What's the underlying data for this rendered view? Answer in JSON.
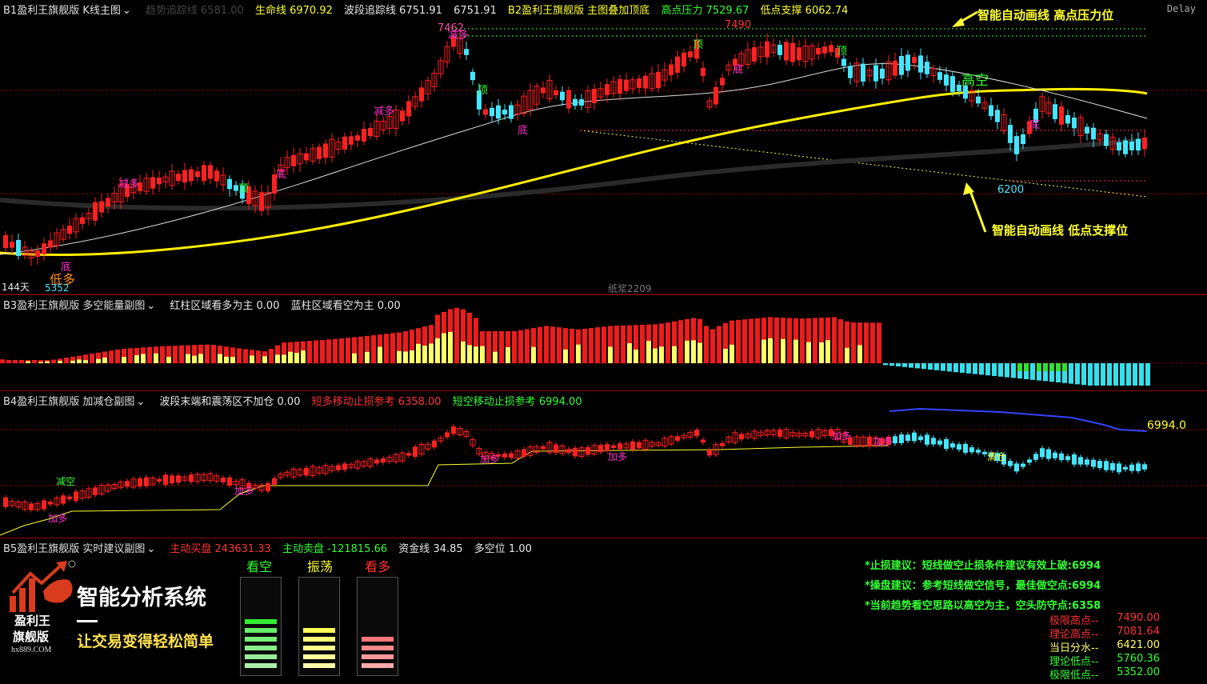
{
  "delay": "Delay",
  "main": {
    "title": "B1盈利王旗舰版 K线主图",
    "faded_label": "趋势追踪线 6581.00",
    "items": [
      {
        "label": "生命线",
        "value": "6970.92"
      },
      {
        "label": "波段追踪线",
        "value": "6751.91"
      },
      {
        "label": "",
        "value": "6751.91"
      }
    ],
    "subtitle": "B2盈利王旗舰版 主图叠加顶底",
    "pressure_label": "高点压力",
    "pressure_value": "7529.67",
    "support_label": "低点支撑",
    "support_value": "6062.74",
    "price_high": "7462",
    "price_low": "5352",
    "price_mark_top": "7490",
    "price_mark_low": "6200",
    "annotation_top": "智能自动画线  高点压力位",
    "annotation_bottom": "智能自动画线  低点支撑位",
    "gaokong": "高空",
    "dixiao": "低多",
    "days": "144天",
    "paper": "纸浆2209",
    "signals": {
      "ding": "顶",
      "di": "底",
      "jianduo": "减多"
    }
  },
  "sub3": {
    "title": "B3盈利王旗舰版 多空能量副图",
    "red_label": "红柱区域看多为主",
    "red_value": "0.00",
    "blue_label": "蓝柱区域看空为主",
    "blue_value": "0.00"
  },
  "sub4": {
    "title": "B4盈利王旗舰版 加减仓副图",
    "wave_label": "波段末端和震荡区不加仓",
    "wave_value": "0.00",
    "long_stop_label": "短多移动止损参考",
    "long_stop_value": "6358.00",
    "short_stop_label": "短空移动止损参考",
    "short_stop_value": "6994.00",
    "right_value": "6994.0",
    "jiaduo": "加多",
    "jiakong": "减空",
    "qingcang": "清仓"
  },
  "sub5": {
    "title": "B5盈利王旗舰版 实时建议副图",
    "buy_label": "主动买盘",
    "buy_value": "243631.33",
    "sell_label": "主动卖盘",
    "sell_value": "-121815.66",
    "fund_label": "资金线",
    "fund_value": "34.85",
    "pos_label": "多空位",
    "pos_value": "1.00",
    "brand_cn1": "盈利王",
    "brand_cn2": "旗舰版",
    "brand_site": "hx889.COM",
    "slogan_main": "智能分析系统",
    "slogan_sub": "让交易变得轻松简单",
    "gauge_labels": [
      "看空",
      "振荡",
      "看多"
    ],
    "advice": [
      "*止损建议：短线做空止损条件建议有效上破:6994",
      "*操盘建议：参考短线做空信号，最佳做空点:6994",
      "*当前趋势看空思路以高空为主，空头防守点:6358"
    ],
    "levels": [
      {
        "label": "极限高点--",
        "value": "7490.00"
      },
      {
        "label": "理论高点--",
        "value": "7081.64"
      },
      {
        "label": "当日分水--",
        "value": "6421.00"
      },
      {
        "label": "理论低点--",
        "value": "5760.36"
      },
      {
        "label": "极限低点--",
        "value": "5352.00"
      }
    ]
  },
  "colors": {
    "up": "#ff2020",
    "down": "#44e6ff",
    "life": "#ffff00",
    "ma": "#e8e8e8",
    "grid": "#8b0000"
  }
}
